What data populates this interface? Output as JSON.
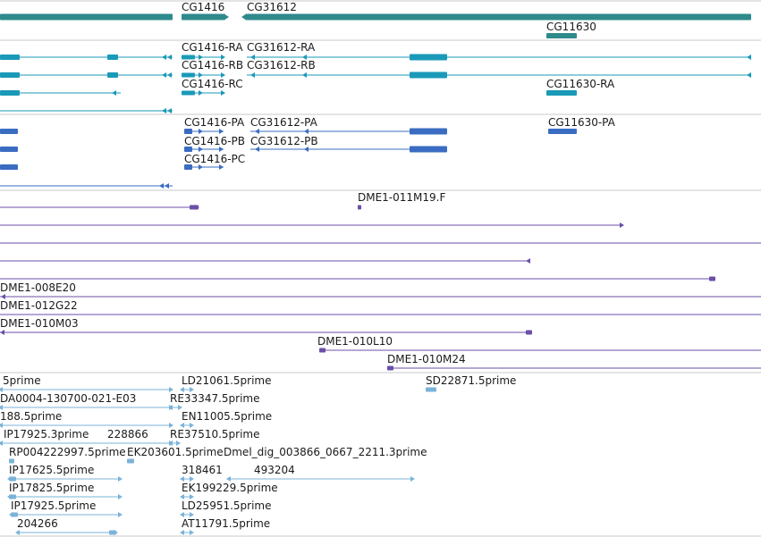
{
  "colors": {
    "gene": "#2f8a8c",
    "transcript": "#1a9ab8",
    "protein": "#3a6cc2",
    "clone": "#6b4fa8",
    "est": "#7bb3d8",
    "separator": "#c8c8c8"
  },
  "tracks": {
    "genes": {
      "labels": [
        "CG1416",
        "CG31612",
        "CG11630"
      ]
    },
    "transcripts": {
      "labels": [
        "CG1416-RA",
        "CG31612-RA",
        "CG1416-RB",
        "CG31612-RB",
        "CG1416-RC",
        "CG11630-RA"
      ]
    },
    "proteins": {
      "labels": [
        "CG1416-PA",
        "CG31612-PA",
        "CG11630-PA",
        "CG1416-PB",
        "CG31612-PB",
        "CG1416-PC"
      ]
    },
    "clones": {
      "labels": [
        "DME1-011M19.F",
        "DME1-008E20",
        "DME1-012G22",
        "DME1-010M03",
        "DME1-010L10",
        "DME1-010M24"
      ]
    },
    "ests": {
      "labels": [
        "5prime",
        "LD21061.5prime",
        "SD22871.5prime",
        "DA0004-130700-021-E03",
        "RE33347.5prime",
        "188.5prime",
        "EN11005.5prime",
        "IP17925.3prime",
        "228866",
        "RE37510.5prime",
        "RP004222997.5prime",
        "EK203601.5prime",
        "Dmel_dig_003866_0667_2211.3prime",
        "IP17625.5prime",
        "318461",
        "493204",
        "IP17825.5prime",
        "EK199229.5prime",
        "IP17925.5prime",
        "LD25951.5prime",
        "204266",
        "AT11791.5prime"
      ]
    }
  }
}
